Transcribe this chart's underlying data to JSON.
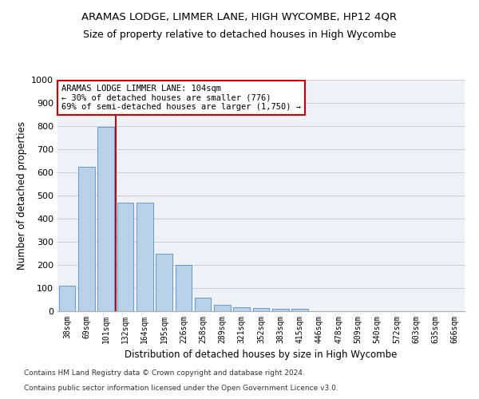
{
  "title": "ARAMAS LODGE, LIMMER LANE, HIGH WYCOMBE, HP12 4QR",
  "subtitle": "Size of property relative to detached houses in High Wycombe",
  "xlabel": "Distribution of detached houses by size in High Wycombe",
  "ylabel": "Number of detached properties",
  "footnote1": "Contains HM Land Registry data © Crown copyright and database right 2024.",
  "footnote2": "Contains public sector information licensed under the Open Government Licence v3.0.",
  "bar_labels": [
    "38sqm",
    "69sqm",
    "101sqm",
    "132sqm",
    "164sqm",
    "195sqm",
    "226sqm",
    "258sqm",
    "289sqm",
    "321sqm",
    "352sqm",
    "383sqm",
    "415sqm",
    "446sqm",
    "478sqm",
    "509sqm",
    "540sqm",
    "572sqm",
    "603sqm",
    "635sqm",
    "666sqm"
  ],
  "bar_values": [
    110,
    625,
    795,
    470,
    470,
    250,
    200,
    60,
    28,
    18,
    13,
    10,
    10,
    0,
    0,
    0,
    0,
    0,
    0,
    0,
    0
  ],
  "bar_color": "#b8d0e8",
  "bar_edge_color": "#6699cc",
  "annotation_line1": "ARAMAS LODGE LIMMER LANE: 104sqm",
  "annotation_line2": "← 30% of detached houses are smaller (776)",
  "annotation_line3": "69% of semi-detached houses are larger (1,750) →",
  "annotation_box_color": "#ffffff",
  "annotation_border_color": "#cc0000",
  "vline_color": "#cc0000",
  "vline_x_index": 2.5,
  "ylim": [
    0,
    1000
  ],
  "yticks": [
    0,
    100,
    200,
    300,
    400,
    500,
    600,
    700,
    800,
    900,
    1000
  ],
  "grid_color": "#cccccc",
  "background_color": "#eef2f8"
}
